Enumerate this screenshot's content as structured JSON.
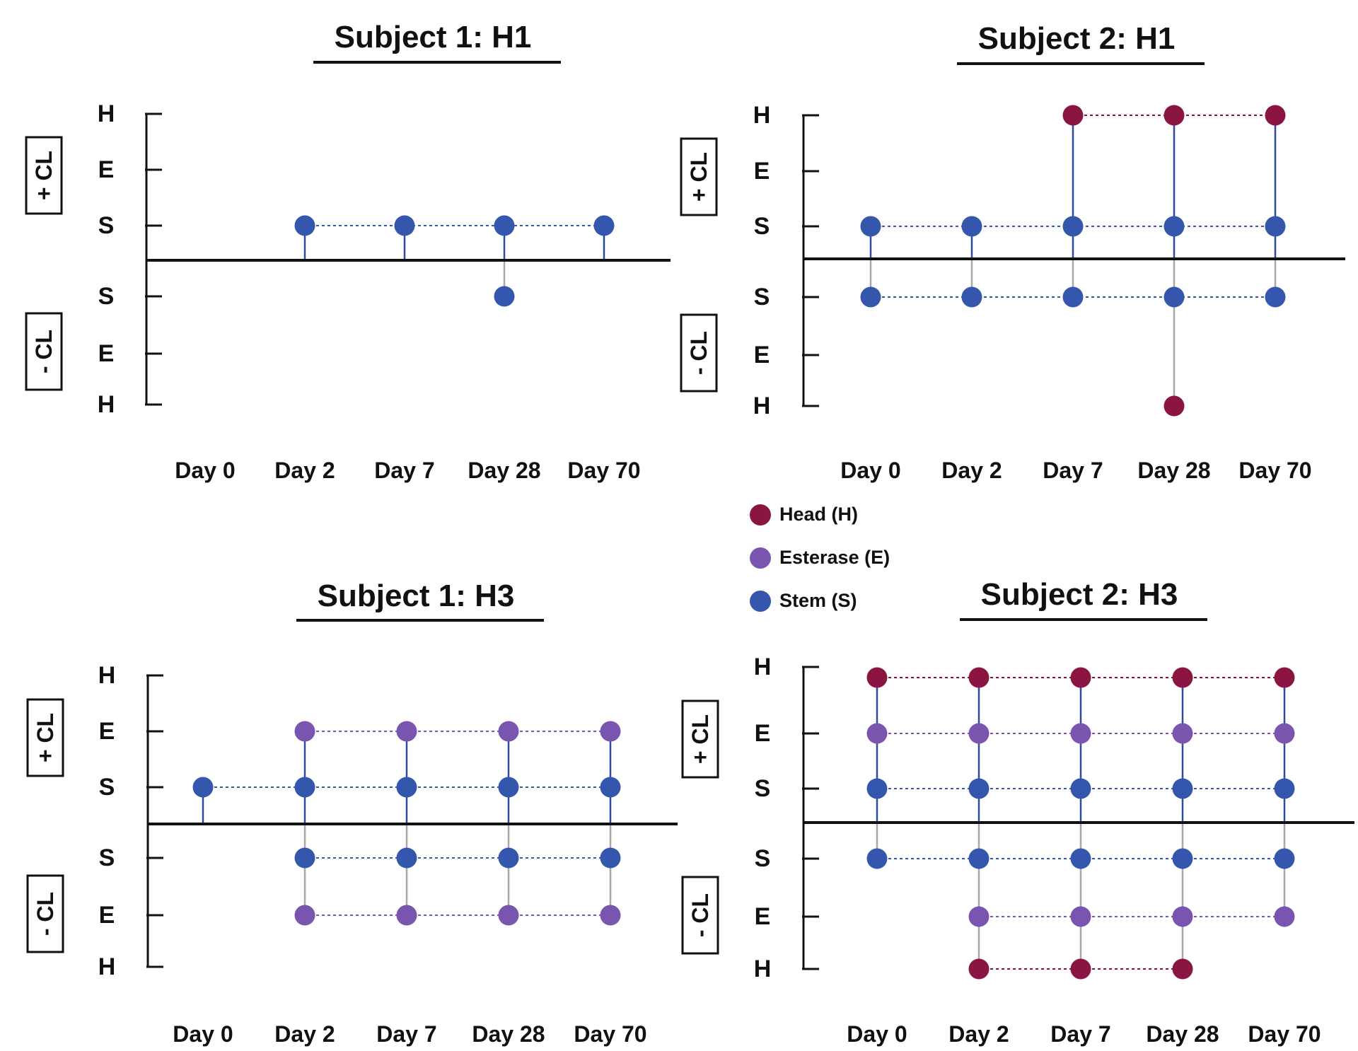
{
  "colors": {
    "head": "#8b1542",
    "esterase": "#7a55b0",
    "stem": "#3556ad",
    "axis": "#111111",
    "stem_line_pos": "#2d4a9c",
    "stem_line_neg": "#a8a8a8"
  },
  "legend": {
    "head": "Head (H)",
    "esterase": "Esterase (E)",
    "stem": "Stem (S)"
  },
  "chart_data": [
    {
      "type": "dot-timeline",
      "title": "Subject 1: H1",
      "categories": [
        "Day 0",
        "Day 2",
        "Day 7",
        "Day 28",
        "Day 70"
      ],
      "y_levels_top": [
        "H",
        "E",
        "S"
      ],
      "y_levels_bottom": [
        "S",
        "E",
        "H"
      ],
      "group_labels": {
        "top": "+ CL",
        "bottom": "- CL"
      },
      "plus_cl": {
        "H": [],
        "E": [],
        "S": [
          "Day 2",
          "Day 7",
          "Day 28",
          "Day 70"
        ]
      },
      "minus_cl": {
        "S": [
          "Day 28"
        ],
        "E": [],
        "H": []
      }
    },
    {
      "type": "dot-timeline",
      "title": "Subject 2: H1",
      "categories": [
        "Day 0",
        "Day 2",
        "Day 7",
        "Day 28",
        "Day 70"
      ],
      "y_levels_top": [
        "H",
        "E",
        "S"
      ],
      "y_levels_bottom": [
        "S",
        "E",
        "H"
      ],
      "group_labels": {
        "top": "+ CL",
        "bottom": "- CL"
      },
      "plus_cl": {
        "H": [
          "Day 7",
          "Day 28",
          "Day 70"
        ],
        "E": [],
        "S": [
          "Day 0",
          "Day 2",
          "Day 7",
          "Day 28",
          "Day 70"
        ]
      },
      "minus_cl": {
        "S": [
          "Day 0",
          "Day 2",
          "Day 7",
          "Day 28",
          "Day 70"
        ],
        "E": [],
        "H": [
          "Day 28"
        ]
      }
    },
    {
      "type": "dot-timeline",
      "title": "Subject 1: H3",
      "categories": [
        "Day 0",
        "Day 2",
        "Day 7",
        "Day 28",
        "Day 70"
      ],
      "y_levels_top": [
        "H",
        "E",
        "S"
      ],
      "y_levels_bottom": [
        "S",
        "E",
        "H"
      ],
      "group_labels": {
        "top": "+ CL",
        "bottom": "- CL"
      },
      "plus_cl": {
        "H": [],
        "E": [
          "Day 2",
          "Day 7",
          "Day 28",
          "Day 70"
        ],
        "S": [
          "Day 0",
          "Day 2",
          "Day 7",
          "Day 28",
          "Day 70"
        ]
      },
      "minus_cl": {
        "S": [
          "Day 2",
          "Day 7",
          "Day 28",
          "Day 70"
        ],
        "E": [
          "Day 2",
          "Day 7",
          "Day 28",
          "Day 70"
        ],
        "H": []
      }
    },
    {
      "type": "dot-timeline",
      "title": "Subject 2: H3",
      "categories": [
        "Day 0",
        "Day 2",
        "Day 7",
        "Day 28",
        "Day 70"
      ],
      "y_levels_top": [
        "H",
        "E",
        "S"
      ],
      "y_levels_bottom": [
        "S",
        "E",
        "H"
      ],
      "group_labels": {
        "top": "+ CL",
        "bottom": "- CL"
      },
      "plus_cl": {
        "H": [
          "Day 0",
          "Day 2",
          "Day 7",
          "Day 28",
          "Day 70"
        ],
        "E": [
          "Day 0",
          "Day 2",
          "Day 7",
          "Day 28",
          "Day 70"
        ],
        "S": [
          "Day 0",
          "Day 2",
          "Day 7",
          "Day 28",
          "Day 70"
        ]
      },
      "minus_cl": {
        "S": [
          "Day 0",
          "Day 2",
          "Day 7",
          "Day 28",
          "Day 70"
        ],
        "E": [
          "Day 2",
          "Day 7",
          "Day 28",
          "Day 70"
        ],
        "H": [
          "Day 2",
          "Day 7",
          "Day 28"
        ]
      }
    }
  ]
}
